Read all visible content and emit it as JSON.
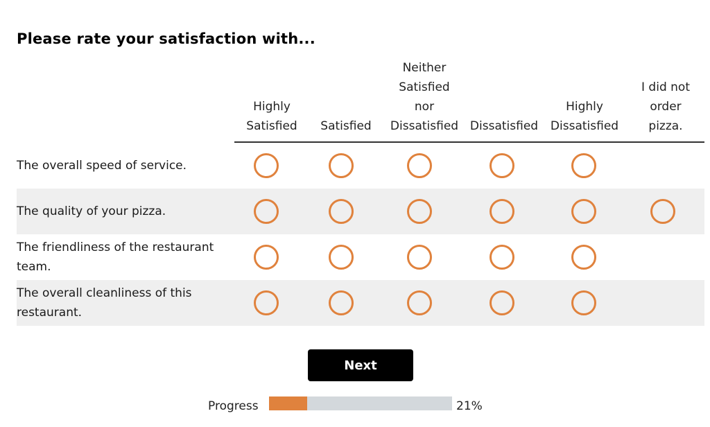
{
  "survey": {
    "question": "Please rate your satisfaction with...",
    "columns": [
      "Highly\nSatisfied",
      "Satisfied",
      "Neither\nSatisfied\nnor\nDissatisfied",
      "Dissatisfied",
      "Highly\nDissatisfied",
      "I did not\norder\npizza."
    ],
    "rows": [
      {
        "label": "The overall speed of service.",
        "options": 5
      },
      {
        "label": "The quality of your pizza.",
        "options": 6
      },
      {
        "label": "The friendliness of the restaurant team.",
        "options": 5
      },
      {
        "label": "The overall cleanliness of this restaurant.",
        "options": 5
      }
    ],
    "radio_color": "#e0823d"
  },
  "footer": {
    "next_label": "Next",
    "progress_label": "Progress",
    "progress_percent": "21%",
    "progress_value": 0.21,
    "progress_fill_color": "#e0823d",
    "progress_track_color": "#d3d8dc"
  }
}
